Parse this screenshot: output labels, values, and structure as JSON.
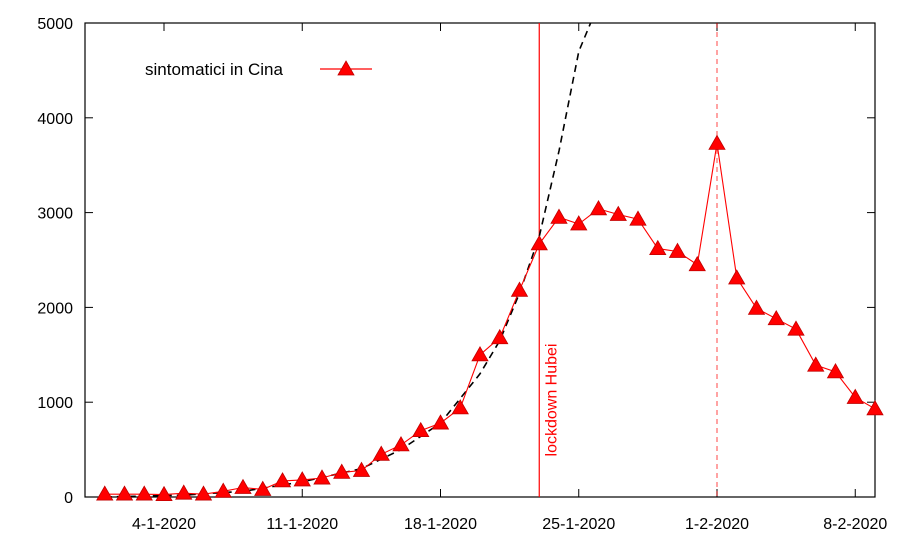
{
  "chart_data": {
    "type": "line",
    "title": "",
    "xlabel": "",
    "ylabel": "",
    "ylim": [
      0,
      5000
    ],
    "yticks": [
      0,
      1000,
      2000,
      3000,
      4000,
      5000
    ],
    "xticks": [
      {
        "date": "2020-01-04",
        "label": "4-1-2020"
      },
      {
        "date": "2020-01-11",
        "label": "11-1-2020"
      },
      {
        "date": "2020-01-18",
        "label": "18-1-2020"
      },
      {
        "date": "2020-01-25",
        "label": "25-1-2020"
      },
      {
        "date": "2020-02-01",
        "label": "1-2-2020"
      },
      {
        "date": "2020-02-08",
        "label": "8-2-2020"
      }
    ],
    "xlim": [
      "2019-12-31",
      "2020-02-09"
    ],
    "grid": false,
    "legend_position": "top-left",
    "series": [
      {
        "name": "sintomatici in Cina",
        "color": "#ff0000",
        "marker": "triangle",
        "points": [
          {
            "x": "2020-01-01",
            "y": 30
          },
          {
            "x": "2020-01-02",
            "y": 30
          },
          {
            "x": "2020-01-03",
            "y": 30
          },
          {
            "x": "2020-01-04",
            "y": 25
          },
          {
            "x": "2020-01-05",
            "y": 40
          },
          {
            "x": "2020-01-06",
            "y": 30
          },
          {
            "x": "2020-01-07",
            "y": 60
          },
          {
            "x": "2020-01-08",
            "y": 100
          },
          {
            "x": "2020-01-09",
            "y": 80
          },
          {
            "x": "2020-01-10",
            "y": 170
          },
          {
            "x": "2020-01-11",
            "y": 180
          },
          {
            "x": "2020-01-12",
            "y": 200
          },
          {
            "x": "2020-01-13",
            "y": 260
          },
          {
            "x": "2020-01-14",
            "y": 280
          },
          {
            "x": "2020-01-15",
            "y": 450
          },
          {
            "x": "2020-01-16",
            "y": 550
          },
          {
            "x": "2020-01-17",
            "y": 700
          },
          {
            "x": "2020-01-18",
            "y": 780
          },
          {
            "x": "2020-01-19",
            "y": 940
          },
          {
            "x": "2020-01-20",
            "y": 1500
          },
          {
            "x": "2020-01-21",
            "y": 1680
          },
          {
            "x": "2020-01-22",
            "y": 2180
          },
          {
            "x": "2020-01-23",
            "y": 2670
          },
          {
            "x": "2020-01-24",
            "y": 2950
          },
          {
            "x": "2020-01-25",
            "y": 2880
          },
          {
            "x": "2020-01-26",
            "y": 3040
          },
          {
            "x": "2020-01-27",
            "y": 2980
          },
          {
            "x": "2020-01-28",
            "y": 2930
          },
          {
            "x": "2020-01-29",
            "y": 2620
          },
          {
            "x": "2020-01-30",
            "y": 2590
          },
          {
            "x": "2020-01-31",
            "y": 2450
          },
          {
            "x": "2020-02-01",
            "y": 3730
          },
          {
            "x": "2020-02-02",
            "y": 2310
          },
          {
            "x": "2020-02-03",
            "y": 1990
          },
          {
            "x": "2020-02-04",
            "y": 1880
          },
          {
            "x": "2020-02-05",
            "y": 1770
          },
          {
            "x": "2020-02-06",
            "y": 1390
          },
          {
            "x": "2020-02-07",
            "y": 1320
          },
          {
            "x": "2020-02-08",
            "y": 1050
          },
          {
            "x": "2020-02-09",
            "y": 930
          }
        ]
      },
      {
        "color": "#000000",
        "style": "dashed",
        "points": [
          {
            "x": "2020-01-01",
            "y": 0
          },
          {
            "x": "2020-01-05",
            "y": 20
          },
          {
            "x": "2020-01-08",
            "y": 60
          },
          {
            "x": "2020-01-11",
            "y": 160
          },
          {
            "x": "2020-01-14",
            "y": 300
          },
          {
            "x": "2020-01-16",
            "y": 500
          },
          {
            "x": "2020-01-18",
            "y": 780
          },
          {
            "x": "2020-01-20",
            "y": 1300
          },
          {
            "x": "2020-01-21",
            "y": 1650
          },
          {
            "x": "2020-01-22",
            "y": 2150
          },
          {
            "x": "2020-01-23",
            "y": 2750
          },
          {
            "x": "2020-01-24",
            "y": 3650
          },
          {
            "x": "2020-01-25",
            "y": 4700
          },
          {
            "x": "2020-01-25.6",
            "y": 5000
          }
        ]
      }
    ],
    "annotations": [
      {
        "type": "vline",
        "x": "2020-01-23",
        "label": "lockdown Hubei",
        "color": "#ff0000",
        "style": "solid"
      },
      {
        "type": "vline",
        "x": "2020-02-01",
        "label": "",
        "color": "#ff0000",
        "style": "dashed"
      }
    ]
  }
}
